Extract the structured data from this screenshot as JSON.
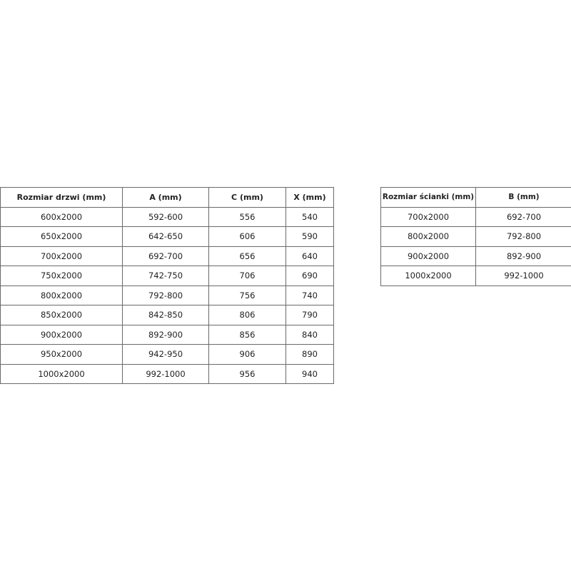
{
  "door_table": {
    "headers": [
      "Rozmiar drzwi (mm)",
      "A (mm)",
      "C (mm)",
      "X (mm)"
    ],
    "rows": [
      [
        "600x2000",
        "592-600",
        "556",
        "540"
      ],
      [
        "650x2000",
        "642-650",
        "606",
        "590"
      ],
      [
        "700x2000",
        "692-700",
        "656",
        "640"
      ],
      [
        "750x2000",
        "742-750",
        "706",
        "690"
      ],
      [
        "800x2000",
        "792-800",
        "756",
        "740"
      ],
      [
        "850x2000",
        "842-850",
        "806",
        "790"
      ],
      [
        "900x2000",
        "892-900",
        "856",
        "840"
      ],
      [
        "950x2000",
        "942-950",
        "906",
        "890"
      ],
      [
        "1000x2000",
        "992-1000",
        "956",
        "940"
      ]
    ]
  },
  "wall_table": {
    "headers": [
      "Rozmiar ścianki (mm)",
      "B (mm)"
    ],
    "rows": [
      [
        "700x2000",
        "692-700"
      ],
      [
        "800x2000",
        "792-800"
      ],
      [
        "900x2000",
        "892-900"
      ],
      [
        "1000x2000",
        "992-1000"
      ]
    ]
  }
}
